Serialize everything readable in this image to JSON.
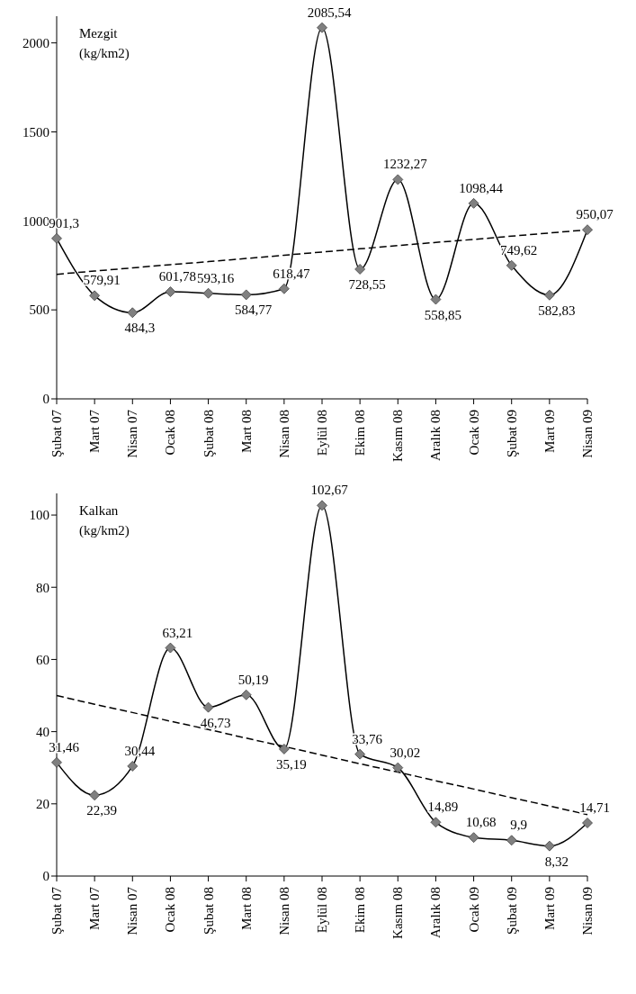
{
  "chart_data": [
    {
      "type": "line",
      "title": "Mezgit",
      "ylabel": "(kg/km2)",
      "categories": [
        "Şubat 07",
        "Mart 07",
        "Nisan 07",
        "Ocak 08",
        "Şubat 08",
        "Mart 08",
        "Nisan 08",
        "Eylül 08",
        "Ekim 08",
        "Kasım 08",
        "Aralık 08",
        "Ocak 09",
        "Şubat 09",
        "Mart 09",
        "Nisan 09"
      ],
      "series": [
        {
          "color": "#000000",
          "marker": "diamond",
          "line_style": "solid",
          "values": [
            901.3,
            579.91,
            484.3,
            601.78,
            593.16,
            584.77,
            618.47,
            2085.54,
            728.55,
            1232.27,
            558.85,
            1098.44,
            749.62,
            582.83,
            950.07
          ],
          "value_labels": [
            "901,3",
            "579,91",
            "484,3",
            "601,78",
            "593,16",
            "584,77",
            "618,47",
            "2085,54",
            "728,55",
            "1232,27",
            "558,85",
            "1098,44",
            "749,62",
            "582,83",
            "950,07"
          ]
        },
        {
          "type": "line",
          "color": "#000000",
          "marker": "none",
          "line_style": "dashed",
          "values": [
            700,
            718,
            736,
            754,
            771,
            789,
            807,
            825,
            843,
            861,
            879,
            896,
            914,
            932,
            950
          ]
        }
      ],
      "ylim": [
        0,
        2150
      ],
      "yticks": [
        0,
        500,
        1000,
        1500,
        2000
      ],
      "grid": false,
      "legend": false
    },
    {
      "type": "line",
      "title": "Kalkan",
      "ylabel": "(kg/km2)",
      "categories": [
        "Şubat 07",
        "Mart 07",
        "Nisan 07",
        "Ocak 08",
        "Şubat 08",
        "Mart 08",
        "Nisan 08",
        "Eylül 08",
        "Ekim 08",
        "Kasım 08",
        "Aralık 08",
        "Ocak 09",
        "Şubat 09",
        "Mart 09",
        "Nisan 09"
      ],
      "series": [
        {
          "color": "#000000",
          "marker": "diamond",
          "line_style": "solid",
          "values": [
            31.46,
            22.39,
            30.44,
            63.21,
            46.73,
            50.19,
            35.19,
            102.67,
            33.76,
            30.02,
            14.89,
            10.68,
            9.9,
            8.32,
            14.71
          ],
          "value_labels": [
            "31,46",
            "22,39",
            "30,44",
            "63,21",
            "46,73",
            "50,19",
            "35,19",
            "102,67",
            "33,76",
            "30,02",
            "14,89",
            "10,68",
            "9,9",
            "8,32",
            "14,71"
          ]
        },
        {
          "type": "line",
          "color": "#000000",
          "marker": "none",
          "line_style": "dashed",
          "values": [
            50,
            47.6,
            45.3,
            42.9,
            40.6,
            38.2,
            35.9,
            33.5,
            31.1,
            28.8,
            26.4,
            24.1,
            21.7,
            19.4,
            17.0
          ]
        }
      ],
      "ylim": [
        0,
        106
      ],
      "yticks": [
        0,
        20,
        40,
        60,
        80,
        100
      ],
      "grid": false,
      "legend": false
    }
  ]
}
